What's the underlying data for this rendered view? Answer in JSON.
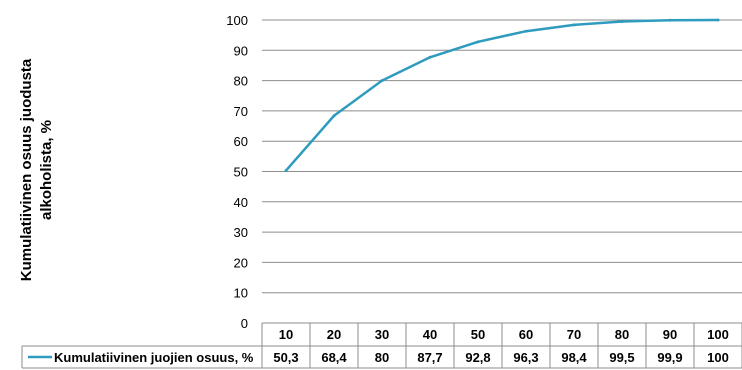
{
  "chart_data": {
    "type": "line",
    "title": "",
    "ylabel": "Kumulatiivinen osuus juodusta alkoholista, %",
    "xlabel": "",
    "categories": [
      "10",
      "20",
      "30",
      "40",
      "50",
      "60",
      "70",
      "80",
      "90",
      "100"
    ],
    "series": [
      {
        "name": "Kumulatiivinen juojien osuus, %",
        "values": [
          50.3,
          68.4,
          80,
          87.7,
          92.8,
          96.3,
          98.4,
          99.5,
          99.9,
          100
        ],
        "value_labels": [
          "50,3",
          "68,4",
          "80",
          "87,7",
          "92,8",
          "96,3",
          "98,4",
          "99,5",
          "99,9",
          "100"
        ],
        "color": "#2e9bbf"
      }
    ],
    "ylim": [
      0,
      100
    ],
    "yticks": [
      0,
      10,
      20,
      30,
      40,
      50,
      60,
      70,
      80,
      90,
      100
    ],
    "grid": true,
    "legend": "data-table",
    "data_table": true
  }
}
